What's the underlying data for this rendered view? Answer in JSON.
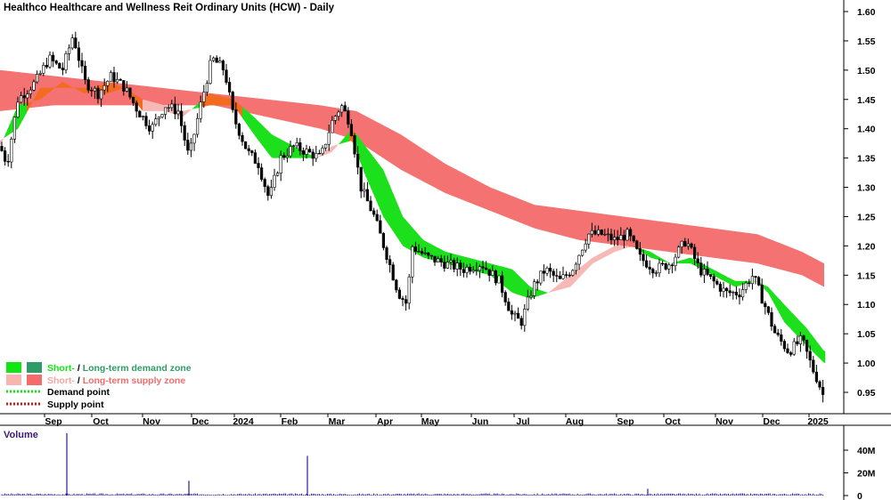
{
  "chart_data": {
    "type": "candlestick",
    "title": "Healthco Healthcare and Wellness Reit Ordinary Units (HCW) - Daily",
    "ylim": [
      0.92,
      1.62
    ],
    "y_ticks": [
      "1.60",
      "1.55",
      "1.50",
      "1.45",
      "1.40",
      "1.35",
      "1.30",
      "1.25",
      "1.20",
      "1.15",
      "1.10",
      "1.05",
      "1.00",
      "0.95"
    ],
    "x_ticks": [
      "Sep",
      "Oct",
      "Nov",
      "Dec",
      "2024",
      "Feb",
      "Mar",
      "Apr",
      "May",
      "Jun",
      "Jul",
      "Aug",
      "Sep",
      "Oct",
      "Nov",
      "Dec",
      "2025"
    ],
    "price_path": [
      [
        0,
        1.37
      ],
      [
        8,
        1.34
      ],
      [
        20,
        1.45
      ],
      [
        40,
        1.48
      ],
      [
        55,
        1.52
      ],
      [
        70,
        1.5
      ],
      [
        82,
        1.56
      ],
      [
        95,
        1.48
      ],
      [
        110,
        1.46
      ],
      [
        125,
        1.49
      ],
      [
        140,
        1.47
      ],
      [
        155,
        1.43
      ],
      [
        170,
        1.4
      ],
      [
        185,
        1.44
      ],
      [
        200,
        1.43
      ],
      [
        212,
        1.35
      ],
      [
        225,
        1.44
      ],
      [
        238,
        1.52
      ],
      [
        252,
        1.5
      ],
      [
        262,
        1.42
      ],
      [
        278,
        1.36
      ],
      [
        290,
        1.34
      ],
      [
        302,
        1.28
      ],
      [
        315,
        1.35
      ],
      [
        330,
        1.37
      ],
      [
        345,
        1.36
      ],
      [
        360,
        1.35
      ],
      [
        372,
        1.41
      ],
      [
        383,
        1.44
      ],
      [
        393,
        1.41
      ],
      [
        405,
        1.3
      ],
      [
        420,
        1.25
      ],
      [
        435,
        1.18
      ],
      [
        447,
        1.12
      ],
      [
        457,
        1.1
      ],
      [
        462,
        1.2
      ],
      [
        480,
        1.18
      ],
      [
        500,
        1.17
      ],
      [
        520,
        1.16
      ],
      [
        540,
        1.17
      ],
      [
        560,
        1.14
      ],
      [
        575,
        1.08
      ],
      [
        585,
        1.07
      ],
      [
        598,
        1.13
      ],
      [
        612,
        1.16
      ],
      [
        628,
        1.14
      ],
      [
        642,
        1.16
      ],
      [
        660,
        1.22
      ],
      [
        675,
        1.22
      ],
      [
        690,
        1.21
      ],
      [
        705,
        1.22
      ],
      [
        718,
        1.18
      ],
      [
        735,
        1.16
      ],
      [
        752,
        1.17
      ],
      [
        770,
        1.21
      ],
      [
        785,
        1.16
      ],
      [
        800,
        1.14
      ],
      [
        815,
        1.12
      ],
      [
        830,
        1.12
      ],
      [
        845,
        1.15
      ],
      [
        858,
        1.1
      ],
      [
        870,
        1.05
      ],
      [
        885,
        1.02
      ],
      [
        900,
        1.04
      ],
      [
        912,
        0.99
      ],
      [
        918,
        0.97
      ],
      [
        925,
        0.94
      ]
    ],
    "short_term_band": [
      [
        0,
        1.38,
        1.37
      ],
      [
        20,
        1.4,
        1.44
      ],
      [
        45,
        1.47,
        1.45
      ],
      [
        70,
        1.47,
        1.48
      ],
      [
        95,
        1.47,
        1.46
      ],
      [
        120,
        1.46,
        1.48
      ],
      [
        140,
        1.47,
        1.47
      ],
      [
        160,
        1.45,
        1.43
      ],
      [
        185,
        1.44,
        1.43
      ],
      [
        205,
        1.43,
        1.42
      ],
      [
        235,
        1.44,
        1.46
      ],
      [
        262,
        1.44,
        1.45
      ],
      [
        285,
        1.39,
        1.42
      ],
      [
        305,
        1.35,
        1.39
      ],
      [
        330,
        1.35,
        1.37
      ],
      [
        355,
        1.35,
        1.35
      ],
      [
        372,
        1.37,
        1.36
      ],
      [
        395,
        1.38,
        1.4
      ],
      [
        410,
        1.32,
        1.37
      ],
      [
        430,
        1.25,
        1.33
      ],
      [
        452,
        1.2,
        1.25
      ],
      [
        475,
        1.18,
        1.21
      ],
      [
        500,
        1.17,
        1.19
      ],
      [
        525,
        1.16,
        1.18
      ],
      [
        550,
        1.15,
        1.17
      ],
      [
        575,
        1.12,
        1.16
      ],
      [
        595,
        1.11,
        1.13
      ],
      [
        615,
        1.12,
        1.12
      ],
      [
        640,
        1.15,
        1.13
      ],
      [
        665,
        1.18,
        1.17
      ],
      [
        690,
        1.2,
        1.19
      ],
      [
        710,
        1.2,
        1.2
      ],
      [
        730,
        1.18,
        1.19
      ],
      [
        752,
        1.17,
        1.17
      ],
      [
        775,
        1.17,
        1.18
      ],
      [
        800,
        1.15,
        1.16
      ],
      [
        825,
        1.13,
        1.14
      ],
      [
        848,
        1.14,
        1.14
      ],
      [
        862,
        1.12,
        1.13
      ],
      [
        880,
        1.07,
        1.1
      ],
      [
        905,
        1.03,
        1.06
      ],
      [
        925,
        1.0,
        1.02
      ]
    ],
    "long_term_band": [
      [
        0,
        1.5,
        1.43
      ],
      [
        60,
        1.49,
        1.44
      ],
      [
        120,
        1.48,
        1.44
      ],
      [
        180,
        1.47,
        1.44
      ],
      [
        240,
        1.46,
        1.44
      ],
      [
        300,
        1.45,
        1.42
      ],
      [
        360,
        1.44,
        1.4
      ],
      [
        400,
        1.43,
        1.38
      ],
      [
        450,
        1.39,
        1.33
      ],
      [
        500,
        1.34,
        1.29
      ],
      [
        550,
        1.3,
        1.26
      ],
      [
        600,
        1.27,
        1.23
      ],
      [
        650,
        1.26,
        1.21
      ],
      [
        700,
        1.25,
        1.2
      ],
      [
        750,
        1.24,
        1.19
      ],
      [
        800,
        1.23,
        1.18
      ],
      [
        850,
        1.22,
        1.17
      ],
      [
        900,
        1.19,
        1.15
      ],
      [
        925,
        1.17,
        1.13
      ]
    ],
    "volume_ticks": [
      "40M",
      "20M",
      "0"
    ],
    "volume_max": 55,
    "volume_spikes": [
      [
        75,
        55
      ],
      [
        212,
        13
      ],
      [
        345,
        35
      ],
      [
        727,
        6
      ]
    ],
    "legend": [
      {
        "label": "Short- / Long-term demand zone",
        "parts": [
          "Short-",
          " / ",
          "Long-term demand zone"
        ],
        "colors": [
          "#12e612",
          "#2e9c66"
        ]
      },
      {
        "label": "Short- / Long-term supply zone",
        "parts": [
          "Short-",
          " / ",
          "Long-term supply zone"
        ],
        "colors": [
          "#f7b4b0",
          "#f36b6b"
        ]
      },
      {
        "label": "Demand point",
        "color": "#12e612"
      },
      {
        "label": "Supply point",
        "color": "#d41414"
      }
    ],
    "volume_label": "Volume",
    "colors": {
      "short_supply": "#f7b9b5",
      "long_supply": "#f47272",
      "short_demand": "#1be01b",
      "overlap": "#f26b1f",
      "price": "#000000",
      "volume": "#2a1aa0"
    }
  }
}
